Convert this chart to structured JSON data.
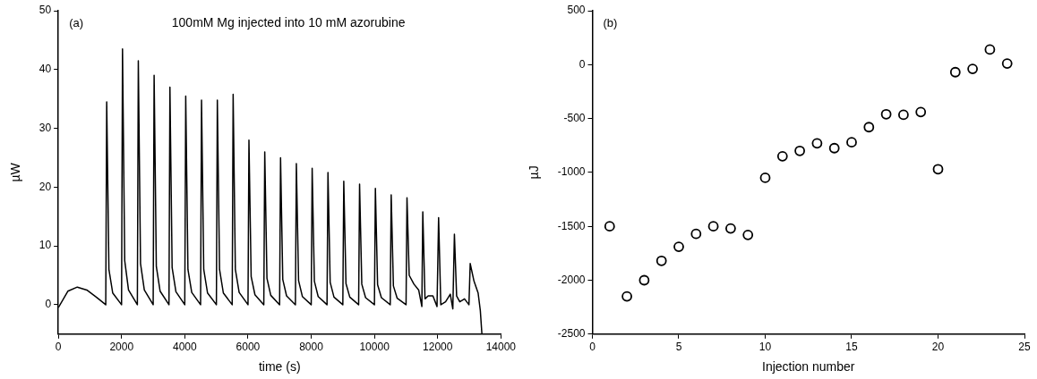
{
  "chart_data": [
    {
      "type": "line",
      "title": "100mM Mg injected into 10 mM azorubine",
      "xlabel": "time (s)",
      "ylabel": "µW",
      "annotations": [
        "(a)"
      ],
      "xlim": [
        0,
        14000
      ],
      "xticks": [
        0,
        2000,
        4000,
        6000,
        8000,
        10000,
        12000,
        14000
      ],
      "ylim": [
        -5,
        50
      ],
      "yticks": [
        0,
        10,
        20,
        30,
        40,
        50
      ],
      "grid": false,
      "legend": false,
      "marker": "none",
      "line_style": "solid",
      "series": [
        {
          "color": "#000000",
          "x": [
            0,
            300,
            600,
            900,
            1200,
            1500,
            1530,
            1600,
            1720,
            2000,
            2030,
            2100,
            2220,
            2500,
            2530,
            2600,
            2720,
            3000,
            3030,
            3100,
            3220,
            3500,
            3530,
            3600,
            3720,
            4000,
            4030,
            4100,
            4220,
            4500,
            4530,
            4600,
            4720,
            5000,
            5030,
            5100,
            5220,
            5500,
            5530,
            5600,
            5720,
            6000,
            6030,
            6100,
            6220,
            6500,
            6530,
            6600,
            6720,
            7000,
            7030,
            7100,
            7220,
            7500,
            7530,
            7600,
            7720,
            8000,
            8030,
            8100,
            8220,
            8500,
            8530,
            8600,
            8720,
            9000,
            9030,
            9100,
            9220,
            9500,
            9530,
            9600,
            9720,
            10000,
            10030,
            10100,
            10220,
            10500,
            10530,
            10600,
            10720,
            11000,
            11030,
            11100,
            11250,
            11400,
            11500,
            11530,
            11600,
            11700,
            11850,
            11980,
            12030,
            12100,
            12250,
            12400,
            12480,
            12530,
            12600,
            12700,
            12850,
            12990,
            13030,
            13150,
            13280,
            13350,
            13400
          ],
          "values": [
            -0.5,
            2.3,
            3,
            2.5,
            1.3,
            0,
            34.5,
            6,
            2,
            0,
            43.5,
            7.5,
            2.5,
            0,
            41.5,
            7,
            2.5,
            0,
            39,
            6.5,
            2.3,
            0,
            37,
            6.3,
            2.2,
            0,
            35.5,
            6,
            2.1,
            0,
            34.8,
            6,
            2,
            0,
            34.8,
            6,
            2,
            0,
            35.8,
            6,
            2.1,
            0,
            28,
            4.8,
            1.7,
            0,
            26,
            4.5,
            1.6,
            0,
            25,
            4.3,
            1.5,
            0,
            24,
            4.1,
            1.4,
            0,
            23.2,
            4,
            1.4,
            0,
            22.5,
            3.8,
            1.3,
            0,
            21,
            3.6,
            1.3,
            0,
            20.5,
            3.5,
            1.2,
            0,
            19.8,
            3.4,
            1.2,
            0,
            18.7,
            3.2,
            1.1,
            0,
            18.2,
            5,
            3.5,
            2.5,
            -0.3,
            15.8,
            1,
            1.5,
            1.5,
            -0.3,
            14.8,
            0,
            0.5,
            1.8,
            -0.7,
            12,
            1.5,
            0.5,
            1,
            0,
            7,
            4,
            2,
            -1,
            -5
          ]
        }
      ]
    },
    {
      "type": "scatter",
      "xlabel": "Injection number",
      "ylabel": "µJ",
      "annotations": [
        "(b)"
      ],
      "xlim": [
        0,
        25
      ],
      "xticks": [
        0,
        5,
        10,
        15,
        20,
        25
      ],
      "ylim": [
        -2500,
        500
      ],
      "yticks": [
        -2500,
        -2000,
        -1500,
        -1000,
        -500,
        0,
        500
      ],
      "grid": false,
      "legend": false,
      "marker": "circle",
      "series": [
        {
          "color": "#000000",
          "x": [
            1,
            2,
            3,
            4,
            5,
            6,
            7,
            8,
            9,
            10,
            11,
            12,
            13,
            14,
            15,
            16,
            17,
            18,
            19,
            20,
            21,
            22,
            23,
            24
          ],
          "values": [
            -1500,
            -2150,
            -2000,
            -1820,
            -1690,
            -1570,
            -1500,
            -1520,
            -1580,
            -1050,
            -850,
            -800,
            -730,
            -775,
            -720,
            -580,
            -460,
            -465,
            -440,
            -970,
            -70,
            -40,
            140,
            10
          ]
        }
      ]
    }
  ]
}
